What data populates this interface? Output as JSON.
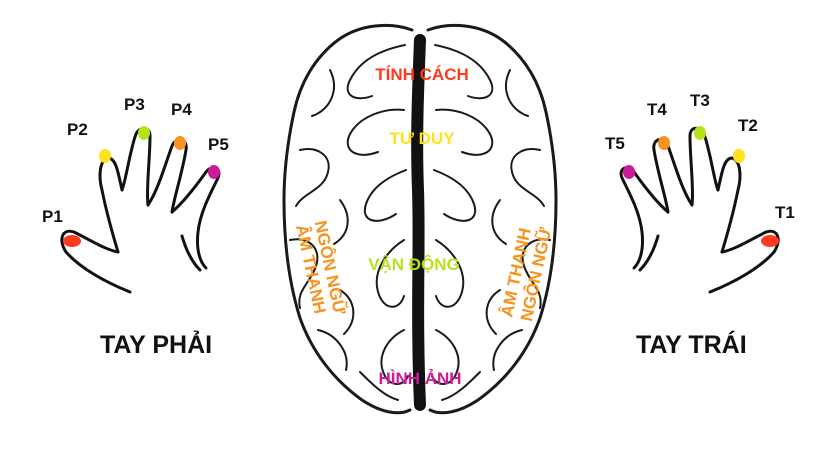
{
  "hands": {
    "right": {
      "title": "TAY PHẢI",
      "fingers": [
        {
          "label": "P1",
          "color": "#ff3b1f"
        },
        {
          "label": "P2",
          "color": "#ffe21a"
        },
        {
          "label": "P3",
          "color": "#b6e21c"
        },
        {
          "label": "P4",
          "color": "#f7931e"
        },
        {
          "label": "P5",
          "color": "#cc1a99"
        }
      ]
    },
    "left": {
      "title": "TAY TRÁI",
      "fingers": [
        {
          "label": "T1",
          "color": "#ff3b1f"
        },
        {
          "label": "T2",
          "color": "#ffe21a"
        },
        {
          "label": "T3",
          "color": "#b6e21c"
        },
        {
          "label": "T4",
          "color": "#f7931e"
        },
        {
          "label": "T5",
          "color": "#cc1a99"
        }
      ]
    }
  },
  "brain": {
    "regions": {
      "personality": {
        "text": "TÍNH CÁCH",
        "color": "#ff3b1f"
      },
      "thinking": {
        "text": "TƯ DUY",
        "color": "#ffe21a"
      },
      "motor": {
        "text": "VẬN ĐỘNG",
        "color": "#b6e21c"
      },
      "visual": {
        "text": "HÌNH ẢNH",
        "color": "#cc1a99"
      },
      "sound_left": {
        "line1": "ÂM THANH",
        "line2": "NGÔN NGỮ",
        "color": "#f7931e"
      },
      "sound_right": {
        "line1": "ÂM THANH",
        "line2": "NGÔN NGỮ",
        "color": "#f7931e"
      }
    }
  }
}
